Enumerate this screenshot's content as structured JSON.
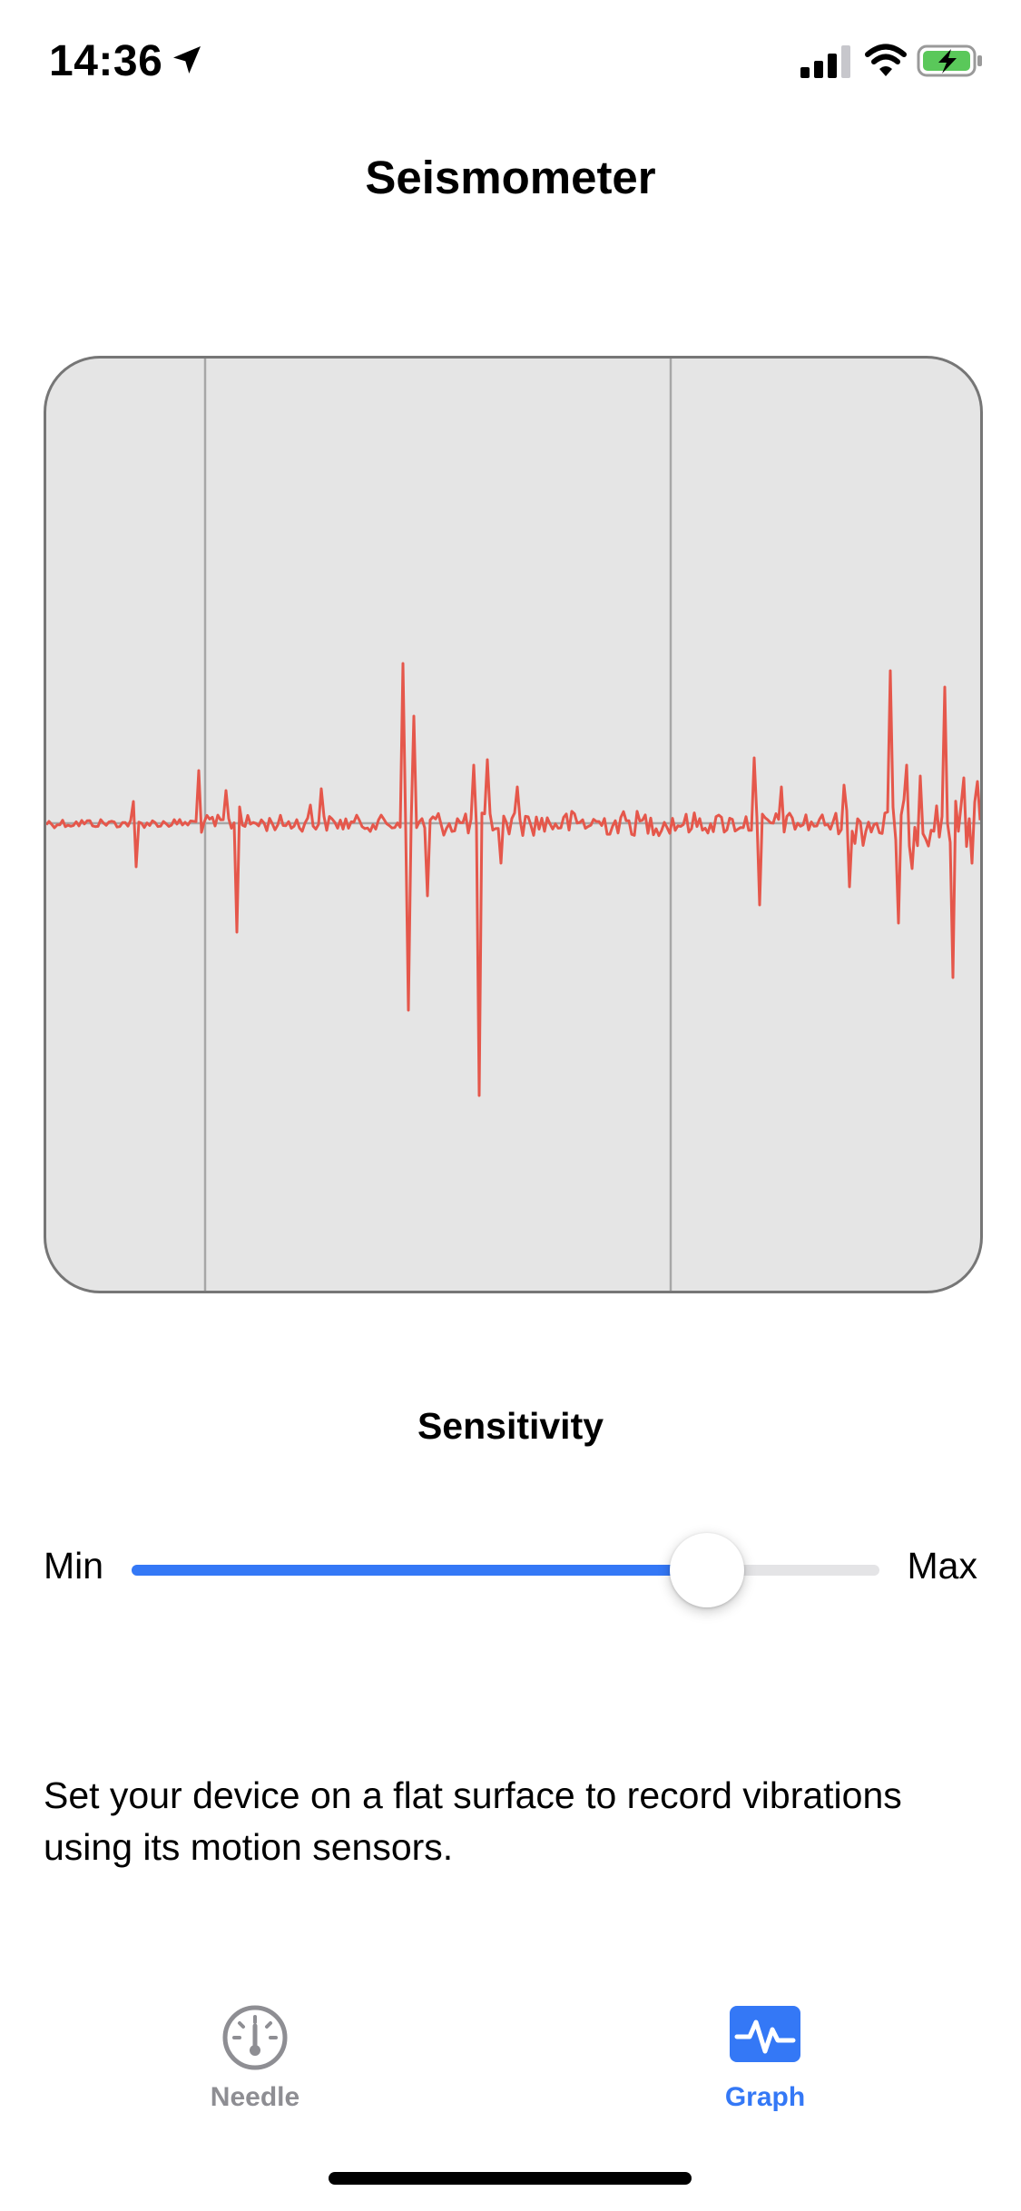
{
  "status_bar": {
    "time": "14:36",
    "icons": [
      "location-arrow-icon",
      "cellular-signal-icon",
      "wifi-icon",
      "battery-charging-icon"
    ]
  },
  "nav": {
    "title": "Seismometer"
  },
  "graph": {
    "background": "#e5e5e5",
    "trace_color": "#e5574b",
    "gridline_color": "#a7a7a7"
  },
  "sensitivity": {
    "label": "Sensitivity",
    "min_label": "Min",
    "max_label": "Max",
    "value": 0.77,
    "accent": "#3478f6"
  },
  "description": "Set your device on a flat surface to record vibrations using its motion sensors.",
  "tabs": [
    {
      "label": "Needle",
      "icon": "gauge-icon",
      "selected": false
    },
    {
      "label": "Graph",
      "icon": "waveform-icon",
      "selected": true
    }
  ]
}
